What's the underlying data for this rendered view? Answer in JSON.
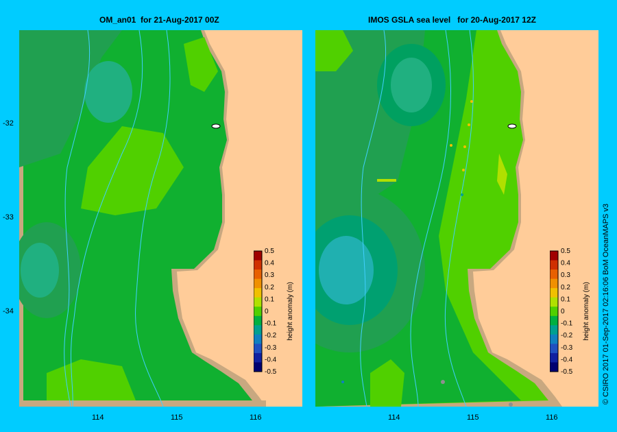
{
  "left_panel": {
    "title": "OM_an01  for 21-Aug-2017 00Z"
  },
  "right_panel": {
    "title": "IMOS GSLA sea level   for 20-Aug-2017 12Z"
  },
  "lat_ticks": [
    "-32",
    "-33",
    "-34"
  ],
  "lon_ticks_left": [
    "114",
    "115",
    "116"
  ],
  "lon_ticks_right": [
    "114",
    "115",
    "116"
  ],
  "colorbar": {
    "label": "height anomaly (m)",
    "ticks": [
      "0.5",
      "0.4",
      "0.3",
      "0.2",
      "0.1",
      "0",
      "-0.1",
      "-0.2",
      "-0.3",
      "-0.4",
      "-0.5"
    ],
    "colors": [
      "#a00000",
      "#d03000",
      "#e86000",
      "#f09000",
      "#f0c000",
      "#b0e000",
      "#50d000",
      "#00b040",
      "#00a090",
      "#1080c0",
      "#2050c0",
      "#1020a0",
      "#000070"
    ]
  },
  "colors": {
    "ocean_green": "#10b030",
    "land": "#ffcc99",
    "coast_shelf": "#c8a880",
    "background": "#00ccff"
  },
  "credit": "© CSIRO 2017   01-Sep-2017 02:16:06 BoM OceanMAPS v3"
}
